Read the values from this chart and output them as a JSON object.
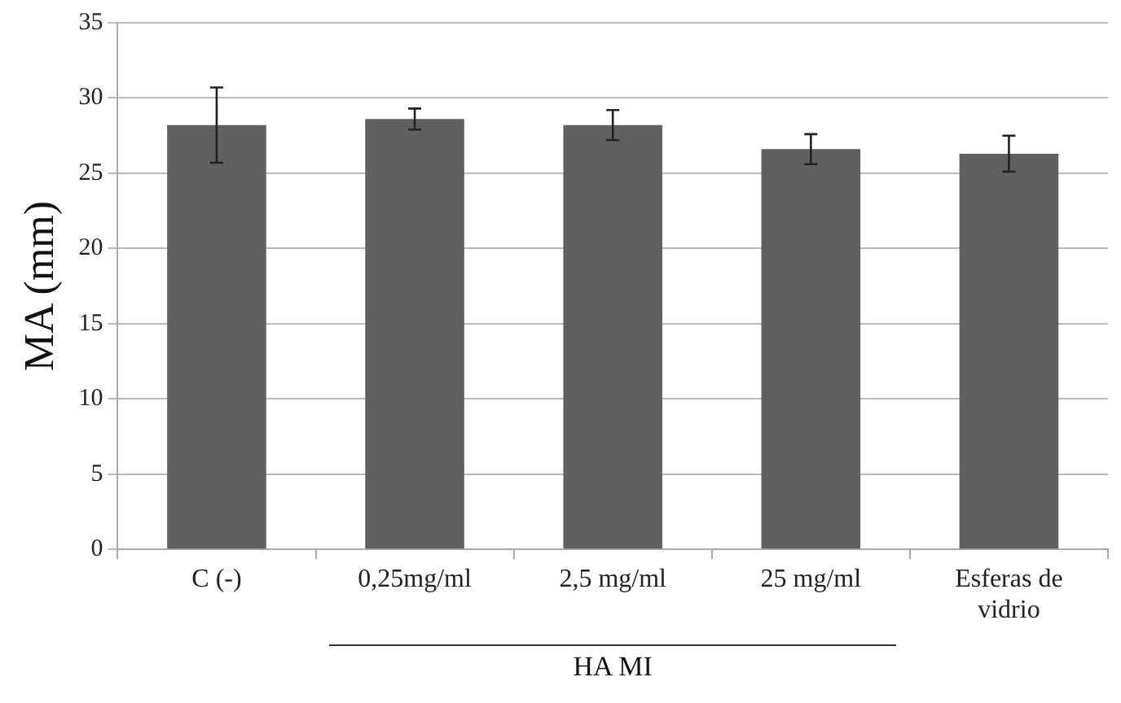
{
  "chart_data": {
    "type": "bar",
    "ylabel": "MA (mm)",
    "categories": [
      "C (-)",
      "0,25mg/ml",
      "2,5 mg/ml",
      "25 mg/ml",
      "Esferas de vidrio"
    ],
    "values": [
      28.2,
      28.6,
      28.2,
      26.6,
      26.3
    ],
    "errors": [
      2.5,
      0.7,
      1.0,
      1.0,
      1.2
    ],
    "color": "#606060",
    "ylim": [
      0,
      35
    ],
    "yticks": [
      0,
      5,
      10,
      15,
      20,
      25,
      30,
      35
    ],
    "grid": "y",
    "legend": false,
    "annotations": [
      "HA MI"
    ]
  }
}
